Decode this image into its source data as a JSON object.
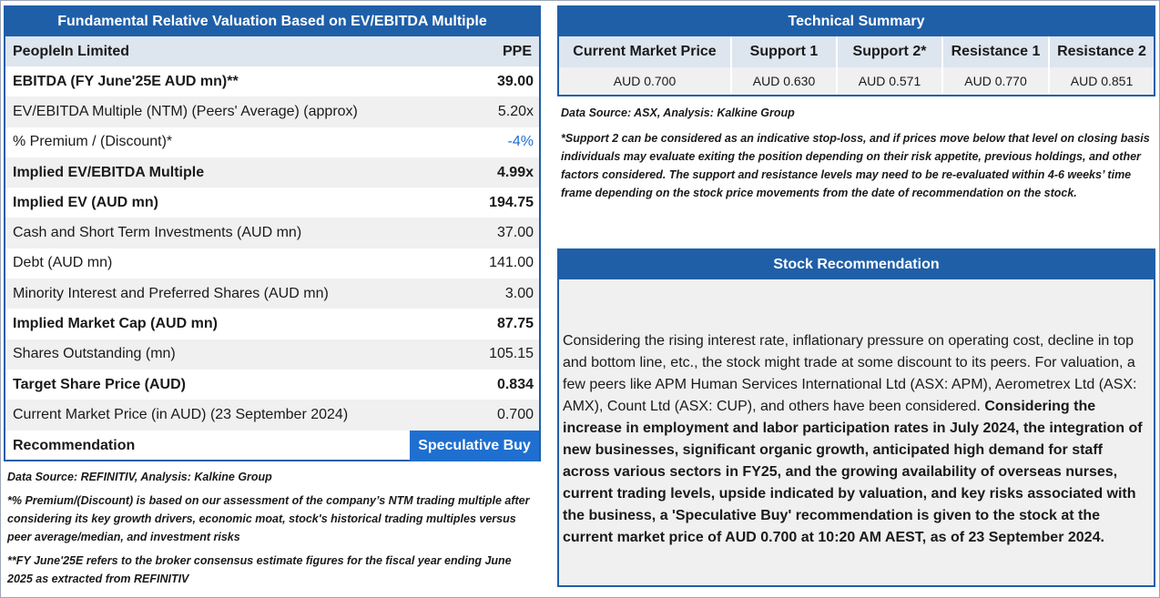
{
  "valuation": {
    "title": "Fundamental Relative Valuation Based on EV/EBITDA Multiple",
    "company": "PeopleIn Limited",
    "ticker": "PPE",
    "rows": [
      {
        "label": "EBITDA (FY June'25E AUD mn)**",
        "value": "39.00"
      },
      {
        "label": "EV/EBITDA Multiple (NTM)  (Peers' Average) (approx)",
        "value": "5.20x"
      },
      {
        "label": "% Premium / (Discount)*",
        "value": "-4%"
      },
      {
        "label": "Implied EV/EBITDA Multiple",
        "value": "4.99x"
      },
      {
        "label": "Implied EV (AUD mn)",
        "value": "194.75"
      },
      {
        "label": "Cash and Short Term Investments (AUD mn)",
        "value": "37.00"
      },
      {
        "label": "Debt (AUD mn)",
        "value": "141.00"
      },
      {
        "label": "Minority Interest and Preferred Shares (AUD mn)",
        "value": "3.00"
      },
      {
        "label": "Implied Market Cap (AUD mn)",
        "value": "87.75"
      },
      {
        "label": "Shares Outstanding (mn)",
        "value": "105.15"
      },
      {
        "label": "Target Share Price (AUD)",
        "value": "0.834"
      },
      {
        "label": "Current Market Price (in AUD) (23 September 2024)",
        "value": "0.700"
      }
    ],
    "recommendation_label": "Recommendation",
    "recommendation_value": "Speculative Buy"
  },
  "left_notes": {
    "source": "Data Source: REFINITIV, Analysis: Kalkine Group",
    "note1": "*% Premium/(Discount) is based on our assessment of the company’s NTM trading multiple after considering its key growth drivers, economic moat, stock's historical trading multiples versus peer average/median, and investment risks",
    "note2": "**FY June'25E refers to the broker consensus estimate figures for the fiscal year ending June 2025 as extracted from REFINITIV"
  },
  "technical": {
    "title": "Technical Summary",
    "columns": [
      {
        "header": "Current Market Price",
        "value": "AUD 0.700"
      },
      {
        "header": "Support 1",
        "value": "AUD 0.630"
      },
      {
        "header": "Support 2*",
        "value": "AUD 0.571"
      },
      {
        "header": "Resistance 1",
        "value": "AUD 0.770"
      },
      {
        "header": "Resistance 2",
        "value": "AUD 0.851"
      }
    ],
    "source": "Data Source: ASX, Analysis: Kalkine Group",
    "note": "*Support 2 can be considered as an indicative stop-loss, and if prices move below that level on closing basis individuals may evaluate exiting the position depending on their risk appetite, previous holdings, and other factors considered. The support and resistance levels may need to be re-evaluated within 4-6 weeks’ time frame depending on the stock price movements from the date of recommendation on the stock."
  },
  "stock": {
    "title": "Stock Recommendation",
    "text_normal": "Considering the rising interest rate, inflationary pressure on operating cost, decline in top and bottom line, etc., the stock might trade at some discount to its peers. For valuation, a few peers like APM Human Services International Ltd (ASX: APM), Aerometrex Ltd (ASX: AMX), Count Ltd (ASX: CUP), and others have been considered.",
    "text_bold": "Considering the increase in employment and labor participation rates in July 2024, the integration of new businesses, significant organic growth, anticipated high demand for staff across various sectors in FY25, and the growing availability of overseas nurses, current trading levels, upside indicated by valuation, and key risks associated with the business, a 'Speculative Buy' recommendation is given to the stock at the current market price of AUD 0.700 at 10:20 AM AEST, as of 23 September 2024."
  },
  "colors": {
    "header_blue": "#1f5fa8",
    "accent_blue": "#1f6fd0",
    "row_grey": "#f0f0f0",
    "head_grey": "#dde5ef"
  }
}
